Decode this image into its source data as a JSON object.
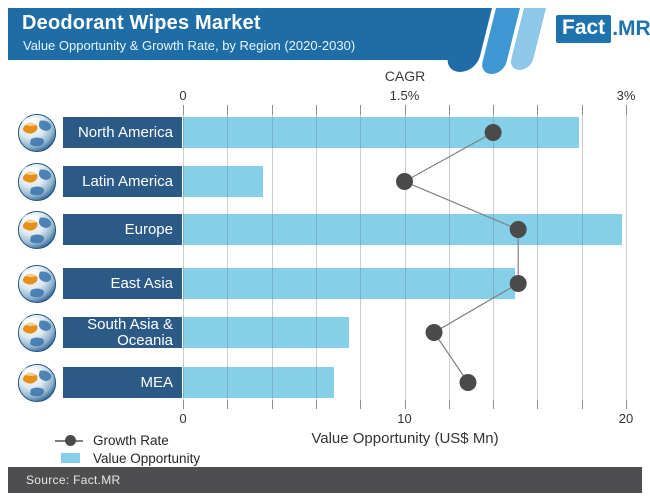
{
  "header": {
    "title": "Deodorant Wipes Market",
    "subtitle": "Value Opportunity & Growth Rate, by Region (2020-2030)",
    "brand": {
      "fact": "Fact",
      "mr": ".MR"
    }
  },
  "chart_data": {
    "type": "bar",
    "orientation": "horizontal",
    "title": "Deodorant Wipes Market — Value Opportunity & Growth Rate, by Region (2020-2030)",
    "regions": [
      {
        "label": "North America",
        "icon": "north-america-globe-icon",
        "value_opportunity": 17.9,
        "growth_rate_cagr": 2.1
      },
      {
        "label": "Latin America",
        "icon": "latin-america-globe-icon",
        "value_opportunity": 3.6,
        "growth_rate_cagr": 1.5
      },
      {
        "label": "Europe",
        "icon": "europe-globe-icon",
        "value_opportunity": 19.8,
        "growth_rate_cagr": 2.27
      },
      {
        "label": "East Asia",
        "icon": "east-asia-globe-icon",
        "value_opportunity": 15.0,
        "growth_rate_cagr": 2.27
      },
      {
        "label": "South Asia & Oceania",
        "icon": "south-asia-oceania-globe-icon",
        "value_opportunity": 7.5,
        "growth_rate_cagr": 1.7
      },
      {
        "label": "MEA",
        "icon": "mea-globe-icon",
        "value_opportunity": 6.8,
        "growth_rate_cagr": 1.93
      }
    ],
    "top_axis": {
      "label": "CAGR",
      "min": 0,
      "max": 3,
      "tick_labels": [
        "0",
        "1.5%",
        "3%"
      ],
      "grid_intervals": 10
    },
    "bottom_axis": {
      "label": "Value Opportunity (US$ Mn)",
      "min": 0,
      "max": 20,
      "tick_labels": [
        "0",
        "10",
        "20"
      ],
      "grid_intervals": 10
    },
    "legend": [
      {
        "label": "Growth Rate",
        "marker": "line-dot",
        "color": "#4a4a4a"
      },
      {
        "label": "Value Opportunity",
        "marker": "rect",
        "color": "#85cfe9"
      }
    ],
    "colors": {
      "bar": "#85cfe9",
      "region_label_box": "#2c5a86",
      "growth_dot": "#4a4a4a",
      "growth_line": "#7f7f7f",
      "header": "#1e6da6",
      "stripe_mid": "#3e96d2",
      "stripe_light": "#8dc8e9"
    }
  },
  "footer": {
    "source": "Source: Fact.MR"
  }
}
